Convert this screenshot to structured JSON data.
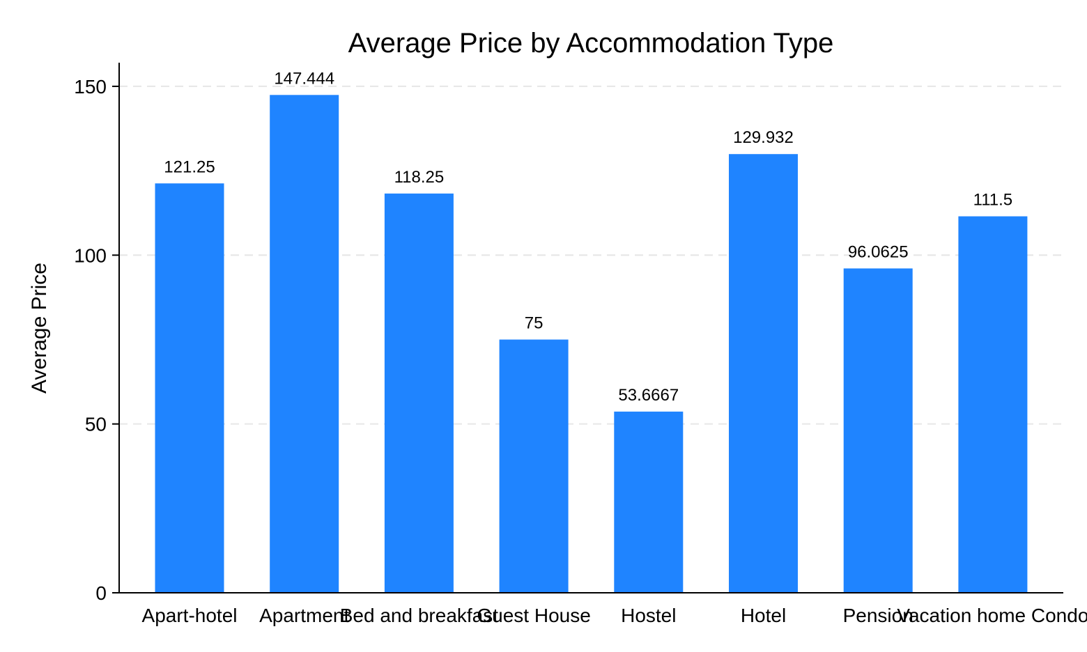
{
  "chart_data": {
    "type": "bar",
    "title": "Average Price by Accommodation Type",
    "xlabel": "",
    "ylabel": "Average Price",
    "categories": [
      "Apart-hotel",
      "Apartment",
      "Bed and breakfast",
      "Guest House",
      "Hostel",
      "Hotel",
      "Pension",
      "Vacation home Condo"
    ],
    "values": [
      121.25,
      147.444,
      118.25,
      75,
      53.6667,
      129.932,
      96.0625,
      111.5
    ],
    "value_labels": [
      "121.25",
      "147.444",
      "118.25",
      "75",
      "53.6667",
      "129.932",
      "96.0625",
      "111.5"
    ],
    "ylim": [
      0,
      157
    ],
    "yticks": [
      0,
      50,
      100,
      150
    ],
    "ytick_labels": [
      "0",
      "50",
      "100",
      "150"
    ],
    "grid": "horizontal dashed",
    "bar_color": "#1f84ff",
    "grid_color": "#e6e6e6"
  }
}
